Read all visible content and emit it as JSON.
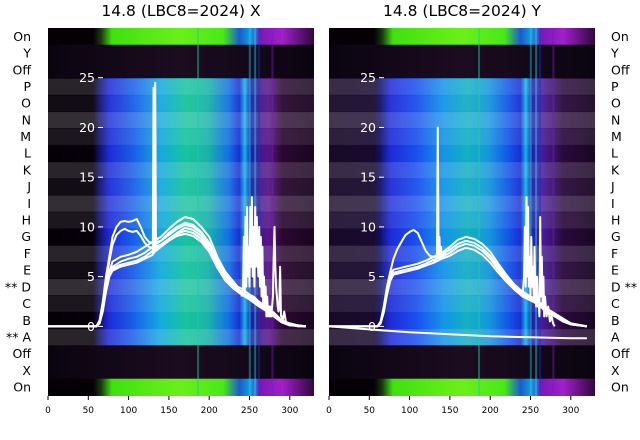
{
  "chart_data": [
    {
      "type": "heatmap",
      "title": "14.8 (LBC8=2024) X",
      "xlim": [
        0,
        330
      ],
      "x_ticks": [
        0,
        50,
        100,
        150,
        200,
        250,
        300
      ],
      "ylim": [
        -7,
        30
      ],
      "y_ticks": [
        0,
        5,
        10,
        15,
        20,
        25
      ],
      "row_labels": [
        "On",
        "Y",
        "Off",
        "P",
        "O",
        "N",
        "M",
        "L",
        "K",
        "J",
        "I",
        "H",
        "G",
        "F",
        "E",
        "** D",
        "C",
        "B",
        "** A",
        "Off",
        "X",
        "On"
      ],
      "row_label_side": "left",
      "grid": false,
      "legend": "none",
      "overlay_series": [
        {
          "x": [
            0,
            60,
            64,
            68,
            72,
            76,
            80,
            90,
            100,
            110,
            120,
            130,
            140,
            150,
            160,
            170,
            180,
            190,
            200,
            210,
            220,
            230,
            235,
            240,
            245,
            250,
            255,
            260,
            265,
            270,
            275,
            280,
            285,
            290,
            300,
            310,
            320
          ],
          "y": [
            0,
            0,
            0.5,
            2,
            4,
            5.5,
            6.5,
            7,
            7.2,
            7.5,
            8,
            8.5,
            9,
            9.8,
            10.5,
            11,
            10.8,
            10,
            9,
            7,
            5.5,
            4.5,
            4,
            3.8,
            3.5,
            3.2,
            3,
            2.6,
            2.3,
            2,
            1.7,
            1.4,
            1,
            0.6,
            0.3,
            0.1,
            0
          ]
        },
        {
          "x": [
            0,
            60,
            64,
            68,
            72,
            76,
            80,
            90,
            100,
            110,
            120,
            130,
            140,
            150,
            160,
            170,
            180,
            190,
            200,
            210,
            220,
            230,
            235,
            240,
            245,
            250,
            255,
            260,
            265,
            270,
            275,
            280,
            285,
            290,
            300,
            310,
            320
          ],
          "y": [
            0,
            0,
            0.4,
            1.8,
            3.8,
            5.2,
            6,
            6.5,
            6.8,
            7,
            7.4,
            8,
            8.6,
            9.4,
            10,
            10.4,
            10.2,
            9.5,
            8.4,
            6.6,
            5.2,
            4.2,
            3.8,
            3.5,
            3.2,
            3,
            2.8,
            2.5,
            2.2,
            1.9,
            1.6,
            1.3,
            0.9,
            0.5,
            0.2,
            0.1,
            0
          ]
        },
        {
          "x": [
            0,
            60,
            64,
            68,
            72,
            76,
            80,
            90,
            100,
            110,
            120,
            130,
            140,
            150,
            160,
            170,
            180,
            190,
            200,
            210,
            220,
            230,
            235,
            240,
            245,
            250,
            255,
            260,
            265,
            270,
            275,
            280,
            285,
            290,
            300,
            310,
            320
          ],
          "y": [
            0,
            0,
            0.3,
            1.5,
            3.5,
            5,
            5.8,
            6.2,
            6.4,
            6.6,
            7,
            7.6,
            8.2,
            8.8,
            9.3,
            9.6,
            9.4,
            8.8,
            7.8,
            6.2,
            4.9,
            4,
            3.6,
            3.3,
            3,
            2.8,
            2.6,
            2.3,
            2,
            1.8,
            1.5,
            1.2,
            0.8,
            0.4,
            0.2,
            0,
            0
          ]
        },
        {
          "x": [
            0,
            60,
            64,
            68,
            72,
            76,
            80,
            85,
            90,
            95,
            100,
            105,
            110,
            115,
            120,
            125,
            130,
            140,
            150,
            160,
            170,
            180,
            190,
            200,
            210,
            220,
            230,
            240,
            250,
            260,
            270,
            280,
            290,
            300,
            320
          ],
          "y": [
            0,
            0,
            0.6,
            2.5,
            5,
            7,
            9,
            10,
            10.5,
            10.6,
            10.5,
            10.6,
            10.8,
            10,
            9,
            8.5,
            8.4,
            8.6,
            9.2,
            9.8,
            10.2,
            10,
            9.4,
            8.3,
            6.5,
            5,
            4,
            3.4,
            2.9,
            2.3,
            1.8,
            1.2,
            0.5,
            0.2,
            0
          ]
        },
        {
          "x": [
            0,
            60,
            64,
            68,
            72,
            76,
            80,
            85,
            90,
            95,
            100,
            105,
            110,
            115,
            120,
            125,
            130,
            140,
            150,
            160,
            170,
            180,
            190,
            200,
            210,
            220,
            230,
            240,
            250,
            260,
            270,
            280,
            290,
            300,
            320
          ],
          "y": [
            0,
            0,
            0.5,
            2.2,
            4.6,
            6.5,
            8.2,
            9.2,
            9.6,
            9.8,
            9.6,
            9.5,
            9.6,
            9.1,
            8.4,
            8,
            7.9,
            8.2,
            8.8,
            9.4,
            9.9,
            9.7,
            9.1,
            8,
            6.3,
            4.8,
            3.9,
            3.3,
            2.8,
            2.2,
            1.7,
            1.1,
            0.5,
            0.2,
            0
          ]
        },
        {
          "x": [
            0,
            55,
            60,
            64,
            68,
            72,
            76,
            80,
            90,
            100,
            110,
            120,
            130,
            131,
            132,
            133,
            134,
            140,
            150,
            160,
            170,
            180,
            190,
            200,
            210,
            220,
            230,
            240,
            250,
            260,
            270,
            280,
            290,
            300,
            320
          ],
          "y": [
            0,
            0,
            0,
            0.5,
            1.8,
            3.6,
            5,
            5.6,
            6,
            6.2,
            6.4,
            6.8,
            7.2,
            24,
            7.4,
            24.5,
            7.6,
            8,
            8.6,
            9.1,
            9.3,
            9.1,
            8.5,
            7.5,
            5.9,
            4.6,
            3.8,
            3.2,
            2.7,
            2.1,
            1.6,
            1,
            0.4,
            0.1,
            0
          ]
        },
        {
          "x": [
            240,
            242,
            243,
            244,
            245,
            246,
            247,
            248,
            249,
            250,
            251,
            252,
            253,
            254,
            255,
            256,
            257,
            258,
            259,
            260,
            261,
            262,
            263,
            264,
            265,
            266,
            267,
            268,
            269,
            270,
            271,
            272,
            273,
            274,
            275,
            276,
            277,
            278,
            279,
            280,
            281,
            282,
            283,
            284,
            285,
            286,
            287,
            288,
            289,
            290,
            291,
            292,
            293,
            294,
            295,
            296,
            297,
            298,
            300
          ],
          "y": [
            3,
            4,
            9,
            3,
            11,
            4,
            12,
            5,
            8,
            4,
            12,
            6,
            13,
            5,
            10,
            4,
            12,
            6,
            11,
            7,
            5,
            10,
            4,
            9,
            3,
            8,
            2,
            5,
            2,
            4,
            1,
            3,
            1,
            2,
            1,
            2,
            1,
            2,
            3,
            7,
            10,
            6,
            4,
            3,
            2,
            1.5,
            2,
            6,
            1,
            1,
            0.5,
            1,
            1.5,
            1,
            0.5,
            0.4,
            0.3,
            0.2,
            0.1
          ]
        }
      ]
    },
    {
      "type": "heatmap",
      "title": "14.8 (LBC8=2024) Y",
      "xlim": [
        0,
        330
      ],
      "x_ticks": [
        0,
        50,
        100,
        150,
        200,
        250,
        300
      ],
      "ylim": [
        -7,
        30
      ],
      "y_ticks": [
        0,
        5,
        10,
        15,
        20,
        25
      ],
      "row_labels": [
        "On",
        "Y",
        "Off",
        "P",
        "O",
        "N",
        "M",
        "L",
        "K",
        "J",
        "I",
        "H",
        "G",
        "F",
        "E",
        "D **",
        "C",
        "B",
        "A",
        "Off",
        "X",
        "On"
      ],
      "row_label_side": "right",
      "grid": false,
      "legend": "none",
      "overlay_series": [
        {
          "x": [
            0,
            55,
            60,
            64,
            68,
            72,
            76,
            80,
            85,
            90,
            95,
            100,
            105,
            110,
            115,
            120,
            125,
            130,
            140,
            150,
            160,
            170,
            180,
            190,
            200,
            210,
            220,
            230,
            240,
            250,
            255,
            260,
            265,
            270,
            280,
            290,
            300,
            320
          ],
          "y": [
            0,
            0,
            0,
            0.5,
            2,
            4,
            5.5,
            6.8,
            7.8,
            8.5,
            9.2,
            9.5,
            9.7,
            9.4,
            8.5,
            7.6,
            7.1,
            7,
            7.4,
            8,
            8.7,
            9,
            8.8,
            8.3,
            7.5,
            6.3,
            5.2,
            4.2,
            3.5,
            3,
            2.8,
            2.5,
            2.2,
            1.8,
            1.3,
            0.8,
            0.3,
            0
          ]
        },
        {
          "x": [
            0,
            55,
            60,
            64,
            68,
            72,
            76,
            80,
            90,
            100,
            110,
            120,
            130,
            140,
            150,
            160,
            170,
            180,
            190,
            200,
            210,
            220,
            230,
            240,
            250,
            255,
            260,
            265,
            270,
            280,
            290,
            300,
            320
          ],
          "y": [
            0,
            0,
            0,
            0.4,
            1.8,
            3.8,
            5.2,
            5.7,
            5.9,
            6.1,
            6.3,
            6.6,
            7,
            7.3,
            7.7,
            8.3,
            8.6,
            8.4,
            7.9,
            7.1,
            6,
            5,
            4.1,
            3.4,
            2.9,
            2.7,
            2.4,
            2.1,
            1.7,
            1.2,
            0.7,
            0.3,
            0
          ]
        },
        {
          "x": [
            0,
            55,
            60,
            64,
            68,
            72,
            76,
            80,
            90,
            100,
            110,
            120,
            130,
            140,
            150,
            160,
            170,
            180,
            190,
            200,
            210,
            220,
            230,
            240,
            250,
            255,
            260,
            265,
            270,
            280,
            290,
            300,
            320
          ],
          "y": [
            0,
            0,
            0,
            0.3,
            1.6,
            3.5,
            4.9,
            5.4,
            5.6,
            5.8,
            6,
            6.3,
            6.7,
            7,
            7.4,
            8,
            8.3,
            8.1,
            7.6,
            6.8,
            5.7,
            4.7,
            3.9,
            3.2,
            2.8,
            2.6,
            2.3,
            2,
            1.6,
            1.1,
            0.6,
            0.2,
            0
          ]
        },
        {
          "x": [
            0,
            55,
            60,
            64,
            68,
            72,
            76,
            80,
            90,
            100,
            110,
            120,
            130,
            140,
            150,
            160,
            170,
            180,
            190,
            200,
            210,
            220,
            230,
            240,
            250,
            255,
            260,
            265,
            270,
            280,
            290,
            300,
            320
          ],
          "y": [
            0,
            0,
            0,
            0.3,
            1.4,
            3.2,
            4.6,
            5.2,
            5.4,
            5.6,
            5.8,
            6.1,
            6.4,
            6.8,
            7.1,
            7.6,
            7.9,
            7.7,
            7.2,
            6.4,
            5.4,
            4.5,
            3.7,
            3,
            2.6,
            2.4,
            2.1,
            1.8,
            1.4,
            1,
            0.5,
            0.2,
            0
          ]
        },
        {
          "x": [
            130,
            133,
            134,
            135,
            136,
            137,
            138,
            139,
            140,
            142,
            145
          ],
          "y": [
            6.5,
            6.8,
            7.5,
            20,
            7,
            9,
            6.8,
            8,
            7,
            7.2,
            7.4
          ]
        },
        {
          "x": [
            0,
            50,
            100,
            150,
            200,
            250,
            300,
            320
          ],
          "y": [
            0,
            -0.3,
            -0.6,
            -0.8,
            -1.0,
            -1.1,
            -1.2,
            -1.2
          ]
        },
        {
          "x": [
            240,
            242,
            243,
            244,
            245,
            246,
            247,
            248,
            249,
            250,
            251,
            252,
            253,
            254,
            255,
            256,
            257,
            258,
            259,
            260,
            261,
            262,
            263,
            264,
            265,
            266,
            267,
            268,
            270,
            272,
            274,
            276,
            278,
            280
          ],
          "y": [
            3,
            5,
            10,
            4,
            13,
            5,
            12,
            4,
            7,
            3,
            9,
            4,
            6,
            3,
            8,
            3,
            2,
            5,
            2,
            3,
            1,
            11,
            3,
            7,
            2,
            5,
            1,
            3,
            1,
            2,
            0.5,
            1,
            0.3,
            0
          ]
        }
      ]
    }
  ]
}
